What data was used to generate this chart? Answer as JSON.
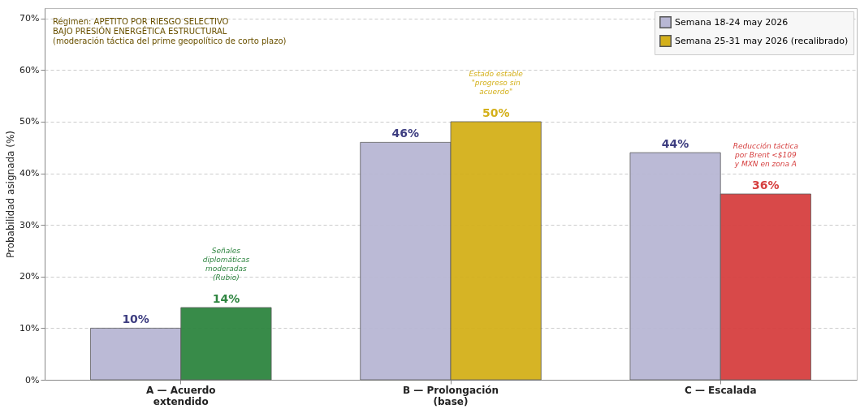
{
  "chart_data": {
    "type": "bar",
    "ylabel": "Probabilidad asignada (%)",
    "categories": [
      "A — Acuerdo extendido",
      "B — Prolongación (base)",
      "C — Escalada"
    ],
    "series": [
      {
        "name": "Semana 18-24 may 2026",
        "color": "#b8b7d4",
        "values": [
          10,
          46,
          44
        ],
        "value_labels": [
          "10%",
          "46%",
          "44%"
        ]
      },
      {
        "name": "Semana 25-31 may 2026 (recalibrado)",
        "color": "#d4b01a",
        "colors": [
          "#2e8540",
          "#d4b01a",
          "#d64040"
        ],
        "values": [
          14,
          50,
          36
        ],
        "value_labels": [
          "14%",
          "50%",
          "36%"
        ]
      }
    ],
    "ylim": [
      0,
      72
    ],
    "yticks": [
      {
        "value": 0,
        "label": "0%"
      },
      {
        "value": 10,
        "label": "10%"
      },
      {
        "value": 20,
        "label": "20%"
      },
      {
        "value": 30,
        "label": "30%"
      },
      {
        "value": 40,
        "label": "40%"
      },
      {
        "value": 50,
        "label": "50%"
      },
      {
        "value": 60,
        "label": "60%"
      },
      {
        "value": 70,
        "label": "70%"
      }
    ],
    "grid": "y",
    "legend": "top right",
    "annotations": [
      "Régimen: APETITO POR RIESGO SELECTIVO\nBAJO PRESIÓN ENERGÉTICA ESTRUCTURAL\n(moderación táctica del prime geopolítico de corto plazo)",
      "Señales\ndiplomáticas\nmoderadas\n(Rubio)",
      "Estado estable\n\"progreso sin\nacuerdo\"",
      "Reducción táctica\npor Brent <$109\ny MXN en zona A"
    ]
  }
}
